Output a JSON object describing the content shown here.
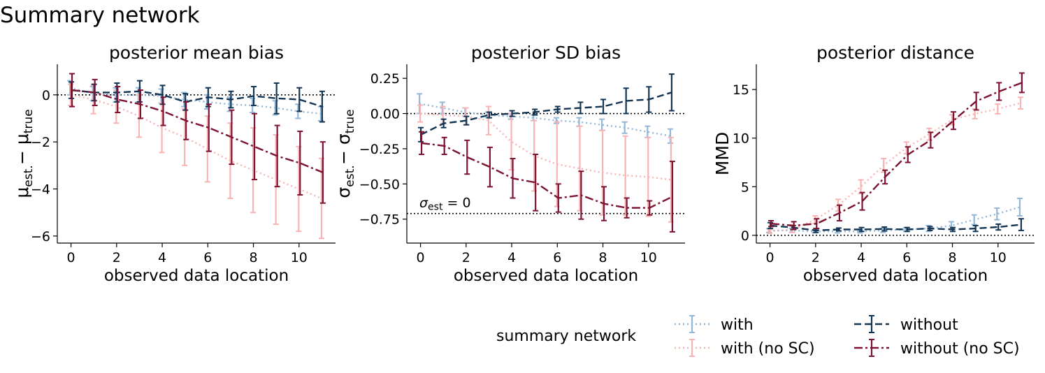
{
  "figure_title": "Summary network",
  "legend": {
    "title": "summary network",
    "entries": [
      {
        "label": "with",
        "color": "#93b7d8",
        "style": "dotted"
      },
      {
        "label": "with (no SC)",
        "color": "#f9b3b3",
        "style": "dotted"
      },
      {
        "label": "without",
        "color": "#133554",
        "style": "dashed"
      },
      {
        "label": "without (no SC)",
        "color": "#7d1330",
        "style": "dashdot"
      }
    ]
  },
  "chart_data": [
    {
      "type": "line",
      "title": "posterior mean bias",
      "xlabel": "observed data location",
      "ylabel": "μest. − μtrue",
      "xlim": [
        -0.6,
        11.6
      ],
      "ylim": [
        -6.3,
        1.3
      ],
      "xticks": [
        0,
        2,
        4,
        6,
        8,
        10
      ],
      "yticks": [
        0,
        -2,
        -4,
        -6
      ],
      "reference_line": 0,
      "x": [
        0,
        1,
        2,
        3,
        4,
        5,
        6,
        7,
        8,
        9,
        10,
        11
      ],
      "series": [
        {
          "name": "with",
          "values": [
            0.3,
            0.05,
            0.0,
            0.0,
            -0.05,
            -0.2,
            -0.3,
            -0.4,
            -0.45,
            -0.55,
            -0.7,
            -0.8
          ],
          "err": [
            0.3,
            0.3,
            0.3,
            0.3,
            0.3,
            0.3,
            0.3,
            0.3,
            0.3,
            0.3,
            0.3,
            0.3
          ]
        },
        {
          "name": "with (no SC)",
          "values": [
            0.0,
            -0.2,
            -0.5,
            -0.9,
            -1.4,
            -1.8,
            -2.3,
            -2.8,
            -3.2,
            -3.6,
            -4.0,
            -4.4
          ],
          "err": [
            0.45,
            0.6,
            0.7,
            0.9,
            1.05,
            1.2,
            1.4,
            1.6,
            1.8,
            1.9,
            1.8,
            1.7
          ]
        },
        {
          "name": "without",
          "values": [
            0.2,
            0.1,
            0.1,
            0.15,
            0.0,
            -0.3,
            -0.1,
            -0.2,
            -0.05,
            -0.15,
            -0.2,
            -0.5
          ],
          "err": [
            0.35,
            0.35,
            0.4,
            0.45,
            0.4,
            0.35,
            0.4,
            0.35,
            0.4,
            0.65,
            0.5,
            0.65
          ]
        },
        {
          "name": "without (no SC)",
          "values": [
            0.2,
            0.1,
            -0.2,
            -0.4,
            -0.7,
            -1.1,
            -1.4,
            -1.8,
            -2.2,
            -2.6,
            -2.9,
            -3.3
          ],
          "err": [
            0.7,
            0.55,
            0.55,
            0.6,
            0.6,
            0.8,
            1.0,
            1.15,
            1.4,
            1.3,
            1.35,
            1.3
          ]
        }
      ]
    },
    {
      "type": "line",
      "title": "posterior SD bias",
      "xlabel": "observed data location",
      "ylabel": "σest. − σtrue",
      "xlim": [
        -0.6,
        11.6
      ],
      "ylim": [
        -0.92,
        0.35
      ],
      "xticks": [
        0,
        2,
        4,
        6,
        8,
        10
      ],
      "yticks": [
        0.25,
        0.0,
        -0.25,
        -0.5,
        -0.75
      ],
      "ytick_labels": [
        "0.25",
        "0.00",
        "−0.25",
        "−0.50",
        "−0.75"
      ],
      "reference_line": 0,
      "second_reference_line": -0.71,
      "annotation": "σest = 0",
      "x": [
        0,
        1,
        2,
        3,
        4,
        5,
        6,
        7,
        8,
        9,
        10,
        11
      ],
      "series": [
        {
          "name": "with",
          "values": [
            0.07,
            0.04,
            0.01,
            -0.01,
            -0.02,
            -0.03,
            -0.05,
            -0.06,
            -0.08,
            -0.1,
            -0.13,
            -0.16
          ],
          "err": [
            0.07,
            0.04,
            0.03,
            0.02,
            0.02,
            0.02,
            0.02,
            0.03,
            0.04,
            0.04,
            0.04,
            0.05
          ]
        },
        {
          "name": "with (no SC)",
          "values": [
            0.0,
            -0.01,
            -0.02,
            -0.05,
            -0.2,
            -0.3,
            -0.36,
            -0.39,
            -0.42,
            -0.44,
            -0.45,
            -0.47
          ],
          "err": [
            0.06,
            0.06,
            0.06,
            0.1,
            0.2,
            0.25,
            0.3,
            0.3,
            0.3,
            0.28,
            0.28,
            0.3
          ]
        },
        {
          "name": "without",
          "values": [
            -0.15,
            -0.07,
            -0.05,
            -0.01,
            0.0,
            0.01,
            0.03,
            0.04,
            0.05,
            0.09,
            0.1,
            0.15
          ],
          "err": [
            0.05,
            0.03,
            0.03,
            0.02,
            0.02,
            0.02,
            0.02,
            0.04,
            0.05,
            0.09,
            0.09,
            0.13
          ]
        },
        {
          "name": "without (no SC)",
          "values": [
            -0.21,
            -0.23,
            -0.31,
            -0.38,
            -0.46,
            -0.49,
            -0.6,
            -0.58,
            -0.64,
            -0.67,
            -0.67,
            -0.59
          ],
          "err": [
            0.08,
            0.06,
            0.12,
            0.14,
            0.14,
            0.2,
            0.1,
            0.17,
            0.12,
            0.07,
            0.05,
            0.25
          ]
        }
      ]
    },
    {
      "type": "line",
      "title": "posterior distance",
      "xlabel": "observed data location",
      "ylabel": "MMD",
      "xlim": [
        -0.6,
        11.6
      ],
      "ylim": [
        -0.8,
        17.6
      ],
      "xticks": [
        0,
        2,
        4,
        6,
        8,
        10
      ],
      "yticks": [
        0,
        5,
        10,
        15
      ],
      "reference_line": 0,
      "x": [
        0,
        1,
        2,
        3,
        4,
        5,
        6,
        7,
        8,
        9,
        10,
        11
      ],
      "series": [
        {
          "name": "with",
          "values": [
            0.5,
            0.5,
            0.4,
            0.4,
            0.4,
            0.5,
            0.6,
            0.7,
            1.0,
            1.6,
            2.2,
            2.9
          ],
          "err": [
            0.2,
            0.2,
            0.15,
            0.15,
            0.15,
            0.2,
            0.2,
            0.3,
            0.4,
            0.5,
            0.6,
            0.9
          ]
        },
        {
          "name": "with (no SC)",
          "values": [
            0.4,
            0.6,
            1.6,
            3.1,
            5.0,
            7.2,
            9.0,
            10.4,
            11.9,
            12.5,
            13.0,
            13.6
          ],
          "err": [
            0.2,
            0.3,
            0.4,
            0.6,
            0.7,
            0.7,
            0.6,
            0.6,
            0.5,
            0.5,
            0.5,
            0.6
          ]
        },
        {
          "name": "without",
          "values": [
            1.0,
            0.8,
            0.5,
            0.6,
            0.6,
            0.65,
            0.6,
            0.7,
            0.6,
            0.7,
            0.85,
            1.1
          ],
          "err": [
            0.3,
            0.2,
            0.2,
            0.15,
            0.2,
            0.2,
            0.2,
            0.2,
            0.2,
            0.3,
            0.3,
            0.6
          ]
        },
        {
          "name": "without (no SC)",
          "values": [
            1.2,
            1.0,
            1.2,
            2.3,
            3.5,
            6.0,
            8.3,
            9.8,
            11.8,
            13.8,
            14.8,
            15.7
          ],
          "err": [
            0.3,
            0.4,
            0.5,
            0.8,
            0.9,
            0.7,
            0.8,
            0.8,
            0.9,
            0.9,
            0.9,
            1.0
          ]
        }
      ]
    }
  ]
}
